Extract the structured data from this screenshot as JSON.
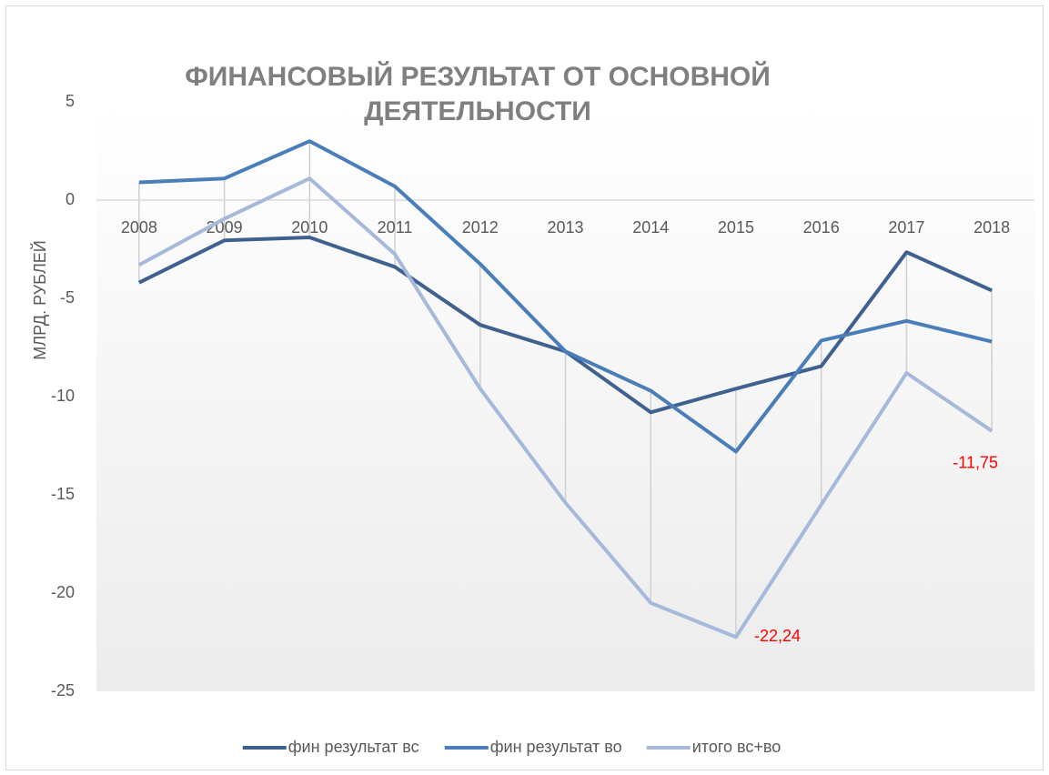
{
  "chart_data": {
    "type": "line",
    "title": "ФИНАНСОВЫЙ РЕЗУЛЬТАТ ОТ ОСНОВНОЙ ДЕЯТЕЛЬНОСТИ",
    "y_label": "МЛРД. РУБЛЕЙ",
    "categories": [
      "2008",
      "2009",
      "2010",
      "2011",
      "2012",
      "2013",
      "2014",
      "2015",
      "2016",
      "2017",
      "2018"
    ],
    "series": [
      {
        "name": "фин результат вс",
        "color": "#3f6190",
        "values": [
          -4.2,
          -2.05,
          -1.9,
          -3.4,
          -6.35,
          -7.7,
          -10.8,
          -9.6,
          -8.45,
          -2.65,
          -4.6
        ]
      },
      {
        "name": "фин результат во",
        "color": "#4a7ebb",
        "values": [
          0.9,
          1.1,
          3.0,
          0.7,
          -3.25,
          -7.7,
          -9.7,
          -12.8,
          -7.15,
          -6.15,
          -7.2
        ]
      },
      {
        "name": "итого вс+во",
        "color": "#a7b9da",
        "values": [
          -3.3,
          -0.95,
          1.1,
          -2.75,
          -9.6,
          -15.4,
          -20.5,
          -22.24,
          -15.5,
          -8.8,
          -11.75
        ],
        "value_labels": [
          null,
          null,
          null,
          null,
          null,
          null,
          null,
          "-22,24",
          null,
          null,
          "-11,75"
        ],
        "label_color": "#ff0000"
      }
    ],
    "ylim": [
      -25,
      5
    ],
    "yticks": [
      5,
      0,
      -5,
      -10,
      -15,
      -20,
      -25
    ],
    "grid": false,
    "legend": "bottom"
  }
}
